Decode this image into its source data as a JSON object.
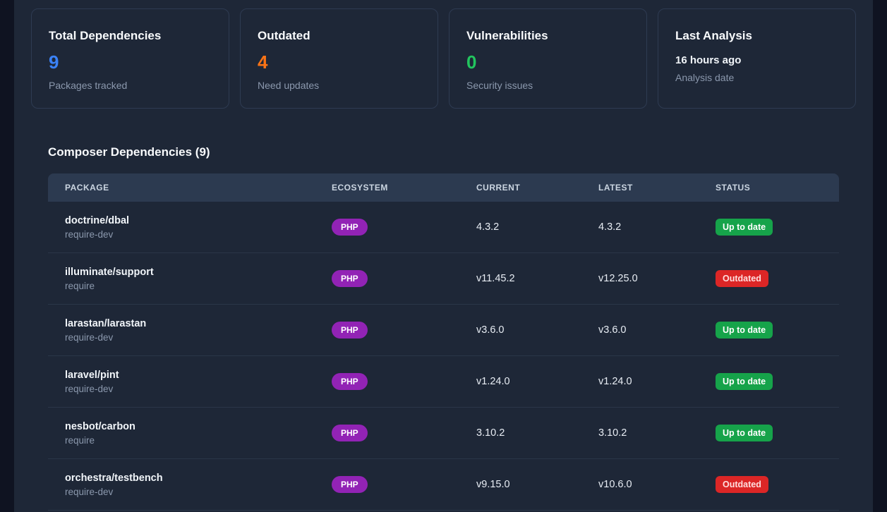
{
  "stats": [
    {
      "label": "Total Dependencies",
      "value": "9",
      "caption": "Packages tracked",
      "kind": "number",
      "color": "#3b82f6"
    },
    {
      "label": "Outdated",
      "value": "4",
      "caption": "Need updates",
      "kind": "number",
      "color": "#f97316"
    },
    {
      "label": "Vulnerabilities",
      "value": "0",
      "caption": "Security issues",
      "kind": "number",
      "color": "#22c55e"
    },
    {
      "label": "Last Analysis",
      "value": "16 hours ago",
      "caption": "Analysis date",
      "kind": "text",
      "color": "#f1f5f9"
    }
  ],
  "section": {
    "title": "Composer Dependencies (9)"
  },
  "table": {
    "columns": [
      "PACKAGE",
      "ECOSYSTEM",
      "CURRENT",
      "LATEST",
      "STATUS"
    ],
    "rows": [
      {
        "package": "doctrine/dbal",
        "scope": "require-dev",
        "ecosystem": "PHP",
        "current": "4.3.2",
        "latest": "4.3.2",
        "status": "Up to date",
        "status_type": "up-to-date"
      },
      {
        "package": "illuminate/support",
        "scope": "require",
        "ecosystem": "PHP",
        "current": "v11.45.2",
        "latest": "v12.25.0",
        "status": "Outdated",
        "status_type": "outdated"
      },
      {
        "package": "larastan/larastan",
        "scope": "require-dev",
        "ecosystem": "PHP",
        "current": "v3.6.0",
        "latest": "v3.6.0",
        "status": "Up to date",
        "status_type": "up-to-date"
      },
      {
        "package": "laravel/pint",
        "scope": "require-dev",
        "ecosystem": "PHP",
        "current": "v1.24.0",
        "latest": "v1.24.0",
        "status": "Up to date",
        "status_type": "up-to-date"
      },
      {
        "package": "nesbot/carbon",
        "scope": "require",
        "ecosystem": "PHP",
        "current": "3.10.2",
        "latest": "3.10.2",
        "status": "Up to date",
        "status_type": "up-to-date"
      },
      {
        "package": "orchestra/testbench",
        "scope": "require-dev",
        "ecosystem": "PHP",
        "current": "v9.15.0",
        "latest": "v10.6.0",
        "status": "Outdated",
        "status_type": "outdated"
      }
    ]
  },
  "colors": {
    "page_background": "#0f1321",
    "container_background": "#1e2737",
    "card_border": "#2e3b52",
    "table_header_background": "#2c3a50",
    "ecosystem_badge": "#9223b5",
    "status": {
      "up-to-date": "#16a34a",
      "outdated": "#dc2626"
    },
    "stat_blue": "#3b82f6",
    "stat_orange": "#f97316",
    "stat_green": "#22c55e"
  }
}
